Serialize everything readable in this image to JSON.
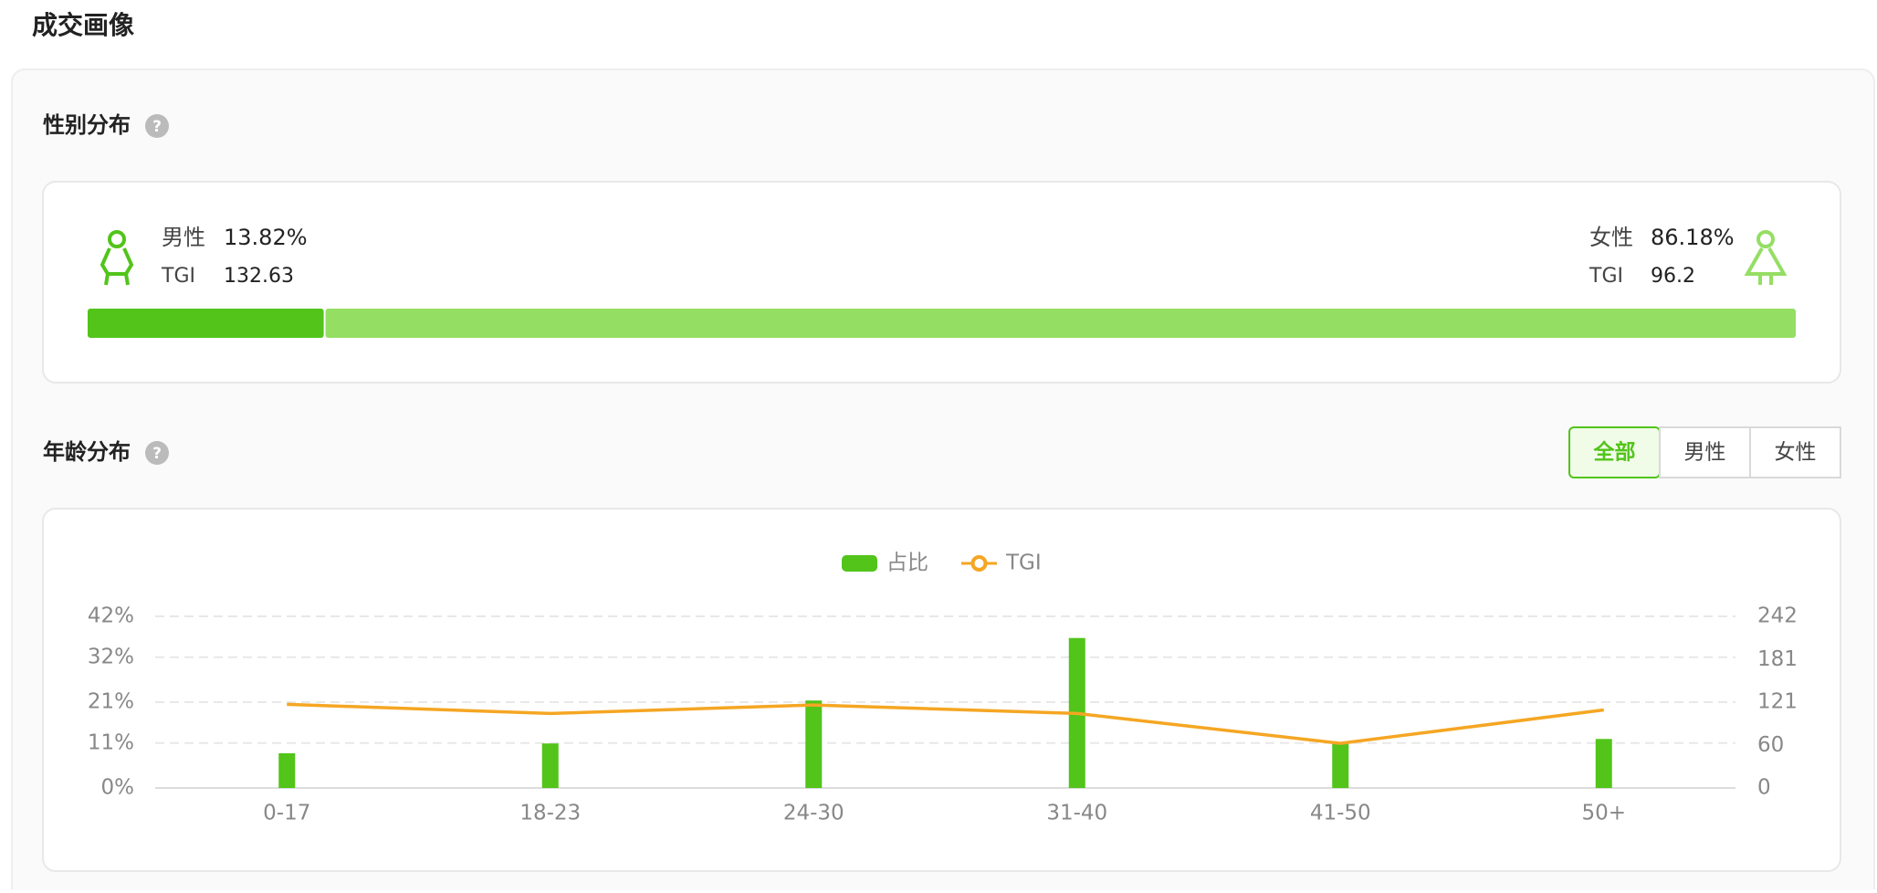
{
  "header": {
    "title": "成交画像"
  },
  "gender": {
    "title": "性别分布",
    "help": "?",
    "male": {
      "label": "男性",
      "percent": 13.82,
      "percent_label": "13.82%",
      "tgi_label": "TGI",
      "tgi": 132.63,
      "color": "#52c41a"
    },
    "female": {
      "label": "女性",
      "percent": 86.18,
      "percent_label": "86.18%",
      "tgi_label": "TGI",
      "tgi": 96.2,
      "color": "#95de64"
    }
  },
  "age": {
    "title": "年龄分布",
    "help": "?",
    "tabs": [
      "全部",
      "男性",
      "女性"
    ],
    "active_tab": 0
  },
  "chart_data": {
    "type": "bar_line",
    "categories": [
      "0-17",
      "18-23",
      "24-30",
      "31-40",
      "41-50",
      "50+"
    ],
    "series": [
      {
        "name": "占比",
        "color": "#52c41a",
        "values": [
          8.5,
          10.9,
          21.4,
          36.7,
          11.2,
          12.0
        ]
      },
      {
        "name": "TGI",
        "color": "#f5a623",
        "axis": "y2",
        "values": [
          118,
          105,
          117,
          105,
          63,
          110
        ]
      }
    ],
    "ylim": [
      0,
      42
    ],
    "yticks": [
      {
        "value": 0,
        "label": "0%"
      },
      {
        "value": 11,
        "label": "11%"
      },
      {
        "value": 21,
        "label": "21%"
      },
      {
        "value": 32,
        "label": "32%"
      },
      {
        "value": 42,
        "label": "42%"
      }
    ],
    "y2lim": [
      0,
      242
    ],
    "y2ticks": [
      0,
      60,
      121,
      181,
      242
    ],
    "grid": true
  }
}
